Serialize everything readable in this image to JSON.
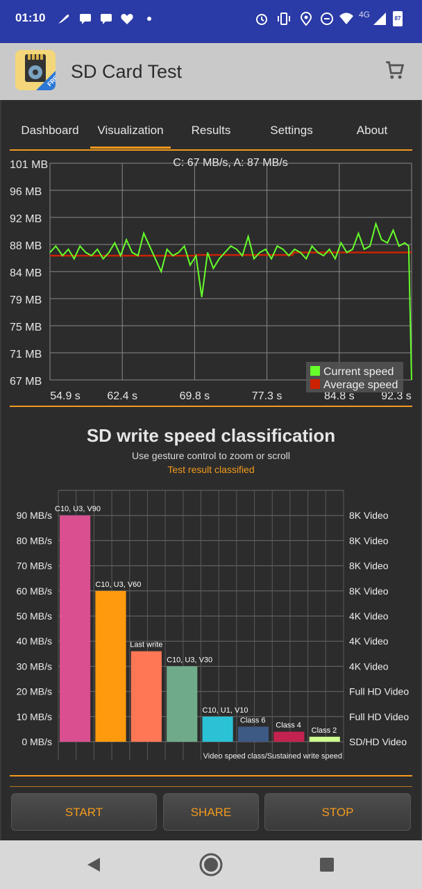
{
  "status_bar": {
    "time": "01:10",
    "network": "4G",
    "battery": "87"
  },
  "app_bar": {
    "title": "SD Card Test",
    "logo_badge": "FREE",
    "cart_icon": "shopping-cart-icon"
  },
  "tabs": [
    {
      "label": "Dashboard",
      "active": false
    },
    {
      "label": "Visualization",
      "active": true
    },
    {
      "label": "Results",
      "active": false
    },
    {
      "label": "Settings",
      "active": false
    },
    {
      "label": "About",
      "active": false
    }
  ],
  "speed_chart": {
    "header": "C: 67 MB/s, A: 87 MB/s",
    "y_labels": [
      "101 MB",
      "96 MB",
      "92 MB",
      "88 MB",
      "84 MB",
      "79 MB",
      "75 MB",
      "71 MB",
      "67 MB"
    ],
    "x_labels": [
      "54.9 s",
      "62.4 s",
      "69.8 s",
      "77.3 s",
      "84.8 s",
      "92.3 s"
    ],
    "legend": [
      {
        "name": "Current speed",
        "color": "#66ff2a"
      },
      {
        "name": "Average speed",
        "color": "#cc2200"
      }
    ]
  },
  "classification": {
    "title": "SD write speed classification",
    "subtitle": "Use gesture control to zoom or scroll",
    "note": "Test result classified",
    "footer": "Video speed class/Sustained write speed"
  },
  "chart_data": [
    {
      "type": "line",
      "title": "C: 67 MB/s, A: 87 MB/s",
      "xlim": [
        54.9,
        92.3
      ],
      "ylim": [
        67,
        101
      ],
      "series": [
        {
          "name": "Current speed",
          "color": "#66ff2a",
          "x": [
            54.9,
            55.5,
            56.2,
            56.8,
            57.4,
            58.0,
            58.6,
            59.2,
            59.8,
            60.4,
            61.0,
            61.6,
            62.2,
            62.8,
            63.4,
            64.0,
            64.6,
            65.2,
            65.8,
            66.4,
            67.0,
            67.6,
            68.2,
            68.8,
            69.4,
            70.0,
            70.6,
            71.2,
            71.8,
            72.4,
            73.0,
            73.6,
            74.2,
            74.8,
            75.4,
            76.0,
            76.6,
            77.2,
            77.8,
            78.4,
            79.0,
            79.6,
            80.2,
            80.8,
            81.4,
            82.0,
            82.6,
            83.2,
            83.8,
            84.4,
            85.0,
            85.6,
            86.2,
            86.8,
            87.4,
            88.0,
            88.6,
            89.2,
            89.8,
            90.4,
            91.0,
            91.6,
            92.0,
            92.3
          ],
          "y": [
            87,
            88,
            86.5,
            87.5,
            86,
            88,
            87,
            86.5,
            87.5,
            86,
            87,
            88.5,
            86.5,
            89,
            87,
            86.5,
            90,
            88,
            86,
            84,
            87.5,
            86.5,
            87,
            88,
            85,
            86.5,
            80,
            87,
            84.5,
            86,
            87,
            88,
            87.5,
            86.5,
            89.5,
            86,
            87,
            87.5,
            86,
            88,
            87.5,
            86.5,
            87.5,
            87,
            86,
            88,
            87,
            86.5,
            87.5,
            86,
            88.5,
            87,
            87.5,
            90,
            87.5,
            88,
            91.5,
            89,
            88.5,
            90.5,
            88,
            88.5,
            88,
            67
          ]
        },
        {
          "name": "Average speed",
          "color": "#cc2200",
          "x": [
            54.9,
            70.0,
            70.1,
            80.0,
            80.1,
            92.3
          ],
          "y": [
            86.5,
            86.5,
            86.6,
            86.6,
            87,
            87
          ]
        }
      ]
    },
    {
      "type": "bar",
      "title": "SD write speed classification",
      "categories": [
        "C10, U3, V90",
        "C10, U3, V60",
        "Last write",
        "C10, U3, V30",
        "C10, U1, V10",
        "Class 6",
        "Class 4",
        "Class 2"
      ],
      "values": [
        90,
        60,
        36,
        30,
        10,
        6,
        4,
        2
      ],
      "colors": [
        "#d94f8f",
        "#ff9a0e",
        "#ff7755",
        "#6fab8a",
        "#2bc2d6",
        "#3d5a85",
        "#c4234f",
        "#cdfc90"
      ],
      "ylim": [
        0,
        100
      ],
      "y_ticks": [
        "0 MB/s",
        "10 MB/s",
        "20 MB/s",
        "30 MB/s",
        "40 MB/s",
        "50 MB/s",
        "60 MB/s",
        "70 MB/s",
        "80 MB/s",
        "90 MB/s"
      ],
      "y_ticks_right": [
        "SD/HD Video",
        "Full HD Video",
        "Full HD Video",
        "4K Video",
        "4K Video",
        "4K Video",
        "8K Video",
        "8K Video",
        "8K Video",
        "8K Video"
      ],
      "xlabel": "Video speed class/Sustained write speed"
    }
  ],
  "buttons": {
    "start": "START",
    "share": "SHARE",
    "stop": "STOP"
  },
  "nav": {
    "back": "back-icon",
    "home": "home-icon",
    "recents": "recents-icon"
  }
}
